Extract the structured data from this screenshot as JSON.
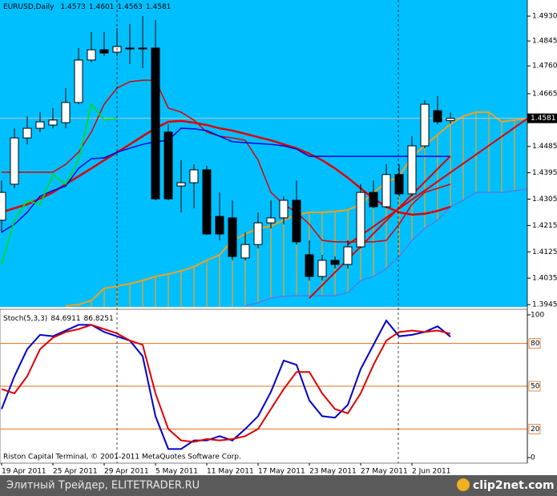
{
  "chart_data": [
    {
      "type": "candlestick",
      "title": "EURUSD,Daily",
      "xlim": [
        -0.125,
        41
      ],
      "ylim": [
        1.3937,
        1.4985
      ],
      "yticks": [
        {
          "value": 1.493,
          "label": "1.4930"
        },
        1.4845,
        {
          "value": 1.476,
          "label": "1.4760"
        },
        1.4665,
        1.4485,
        1.4395,
        1.4305,
        1.4215,
        1.4125,
        1.4035,
        1.3945
      ],
      "background": "#00bfff",
      "candles": {
        "open": [
          1.4233,
          1.4356,
          1.4514,
          1.4547,
          1.4558,
          1.4566,
          1.4635,
          1.478,
          1.4815,
          1.4807,
          1.4821,
          1.4821,
          1.4821,
          1.4534,
          1.435,
          1.4361,
          1.4405,
          1.4246,
          1.4241,
          1.4104,
          1.415,
          1.4224,
          1.4241,
          1.4301,
          1.4115,
          1.4041,
          1.4096,
          1.4082,
          1.4142,
          1.4328,
          1.4279,
          1.4389,
          1.4323,
          1.4487,
          1.4607,
          1.4573
        ],
        "high": [
          1.4369,
          1.4547,
          1.4588,
          1.4602,
          1.4616,
          1.4684,
          1.4821,
          1.4876,
          1.4876,
          1.4889,
          1.4903,
          1.493,
          1.4917,
          1.4561,
          1.4438,
          1.4424,
          1.4419,
          1.4328,
          1.4301,
          1.4191,
          1.426,
          1.4301,
          1.4315,
          1.4369,
          1.4164,
          1.4115,
          1.4109,
          1.4164,
          1.4356,
          1.4369,
          1.4424,
          1.4424,
          1.452,
          1.4643,
          1.4657,
          1.4601
        ],
        "low": [
          1.4191,
          1.4342,
          1.4492,
          1.4534,
          1.4547,
          1.4547,
          1.4629,
          1.4772,
          1.4793,
          1.4793,
          1.4766,
          1.4752,
          1.4301,
          1.4301,
          1.426,
          1.4274,
          1.4183,
          1.4164,
          1.4096,
          1.4096,
          1.4137,
          1.4205,
          1.4219,
          1.415,
          1.4027,
          1.4027,
          1.4068,
          1.4068,
          1.4137,
          1.4274,
          1.4274,
          1.4315,
          1.4315,
          1.4479,
          1.4561,
          1.4563
        ],
        "close": [
          1.4328,
          1.4514,
          1.4547,
          1.4569,
          1.4575,
          1.4635,
          1.478,
          1.4815,
          1.4804,
          1.4826,
          1.4818,
          1.4818,
          1.4306,
          1.4306,
          1.4361,
          1.4405,
          1.4186,
          1.4186,
          1.4109,
          1.415,
          1.4224,
          1.4241,
          1.4301,
          1.4159,
          1.4041,
          1.4096,
          1.4082,
          1.4142,
          1.4328,
          1.4279,
          1.4389,
          1.4323,
          1.4487,
          1.4629,
          1.4569,
          1.4581
        ]
      },
      "lines": [
        {
          "color": "#e00000",
          "width": 2.5,
          "values": [
            1.426,
            1.4274,
            1.4287,
            1.4307,
            1.4328,
            1.4356,
            1.4383,
            1.441,
            1.4438,
            1.4465,
            1.4492,
            1.452,
            1.4547,
            1.4569,
            1.4572,
            1.4566,
            1.4558,
            1.4547,
            1.4539,
            1.4528,
            1.4517,
            1.4506,
            1.4492,
            1.4479,
            1.446,
            1.4438,
            1.441,
            1.4378,
            1.4342,
            1.4307,
            1.4279,
            1.426,
            1.4252,
            1.4255,
            1.4265,
            1.4279
          ]
        },
        {
          "color": "#e00000",
          "width": 1.5,
          "values": [
            1.4397,
            1.4397,
            1.4397,
            1.4397,
            1.4397,
            1.4424,
            1.4465,
            1.4534,
            1.4629,
            1.4684,
            1.4706,
            1.4711,
            1.4711,
            1.4616,
            1.4602,
            1.4575,
            1.4534,
            1.452,
            1.4514,
            1.4506,
            1.4438,
            1.4328,
            1.4287,
            1.426,
            1.4219,
            1.4164,
            1.4159,
            1.4159,
            1.4159,
            1.4159,
            1.4164,
            1.4219,
            1.4287,
            1.4328,
            1.4342,
            1.4356
          ]
        },
        {
          "color": "#0000e0",
          "width": 1.5,
          "values": [
            1.4192,
            1.4219,
            1.426,
            1.4315,
            1.4334,
            1.435,
            1.441,
            1.4443,
            1.4446,
            1.4465,
            1.4479,
            1.4492,
            1.4501,
            1.4506,
            1.4547,
            1.4545,
            1.4539,
            1.452,
            1.4501,
            1.4498,
            1.4495,
            1.4492,
            1.4487,
            1.4476,
            1.4451,
            1.4451,
            1.4451,
            1.4451,
            1.4451,
            1.4451,
            1.4451,
            1.4451,
            1.4451,
            1.4451,
            1.4451,
            1.4451
          ]
        },
        {
          "color": "#00e000",
          "width": 1.5,
          "values": [
            1.4082,
            1.4233,
            1.4301,
            1.4287,
            1.4389,
            1.4356,
            1.4438,
            1.4629,
            1.4575,
            1.458
          ]
        }
      ],
      "cloud": {
        "color": "#f0a020",
        "edge_b_color": "#5080e0",
        "a": [
          null,
          null,
          null,
          null,
          null,
          1.394,
          1.3945,
          1.3959,
          1.4,
          1.4008,
          1.4016,
          1.4027,
          1.4041,
          1.4049,
          1.406,
          1.4074,
          1.4096,
          1.4115,
          1.4164,
          1.4186,
          1.4205,
          1.4213,
          1.4233,
          1.4252,
          1.426,
          1.426,
          1.4263,
          1.4268,
          1.4287,
          1.4328,
          1.4361,
          1.4383,
          1.4451,
          1.4487,
          1.4525,
          1.4561,
          1.4588,
          1.4602,
          1.4602,
          1.4569,
          1.4575,
          1.458
        ],
        "b": [
          null,
          null,
          null,
          null,
          null,
          null,
          null,
          null,
          null,
          null,
          null,
          null,
          null,
          null,
          null,
          null,
          null,
          null,
          null,
          1.394,
          1.3951,
          1.3967,
          1.3973,
          1.3975,
          1.3975,
          1.3975,
          1.3975,
          1.3986,
          1.4027,
          1.4041,
          1.4068,
          1.4109,
          1.4164,
          1.4205,
          1.4233,
          1.4279,
          1.4301,
          1.4328,
          1.4328,
          1.4328,
          1.4334,
          1.4339
        ]
      },
      "trendlines": [
        {
          "color": "#e00000",
          "x": [
            24,
            35
          ],
          "y": [
            1.3967,
            1.4452
          ]
        },
        {
          "color": "#e00000",
          "x": [
            27,
            41
          ],
          "y": [
            1.415,
            1.458
          ]
        }
      ]
    },
    {
      "type": "line",
      "title": "Stoch(5,3,3)",
      "credit": "Riston Capital Terminal, © 2001-2011 MetaQuotes Software Corp.",
      "xlim": [
        -0.125,
        41
      ],
      "ylim": [
        -3.9,
        103.9
      ],
      "yticks": [
        0,
        20,
        50,
        80,
        100
      ],
      "levels": [
        20,
        50,
        80
      ],
      "level_color": "#e07020",
      "xticks": [
        {
          "value": 0,
          "label": "19 Apr 2011"
        },
        {
          "value": 4,
          "label": "25 Apr 2011"
        },
        {
          "value": 8,
          "label": "29 Apr 2011"
        },
        {
          "value": 12,
          "label": "5 May 2011"
        },
        {
          "value": 16,
          "label": "11 May 2011"
        },
        {
          "value": 20,
          "label": "17 May 2011"
        },
        {
          "value": 24,
          "label": "23 May 2011"
        },
        {
          "value": 28,
          "label": "27 May 2011"
        },
        {
          "value": 32,
          "label": "2 Jun 2011"
        }
      ],
      "series": [
        {
          "color": "#0000cc",
          "values": [
            34,
            57,
            76,
            86,
            85,
            89,
            93,
            93,
            88,
            85,
            82,
            71,
            29,
            6,
            6,
            12,
            12,
            15,
            12,
            20,
            29,
            46,
            68,
            65,
            40,
            29,
            28,
            37,
            62,
            79,
            96,
            85,
            86,
            88,
            92,
            84.6911
          ]
        },
        {
          "color": "#e00000",
          "values": [
            48,
            45,
            57,
            76,
            84,
            88,
            90,
            93,
            90,
            87,
            82,
            79,
            45,
            20,
            12,
            11,
            13,
            12,
            13,
            15,
            20,
            34,
            48,
            60,
            60,
            45,
            34,
            31,
            45,
            65,
            82,
            88,
            89,
            88,
            89,
            86.8251
          ]
        }
      ]
    }
  ],
  "footer": {
    "left": "Элитный Трейдер, ELITETRADER.RU",
    "right": "clip2net.com"
  }
}
